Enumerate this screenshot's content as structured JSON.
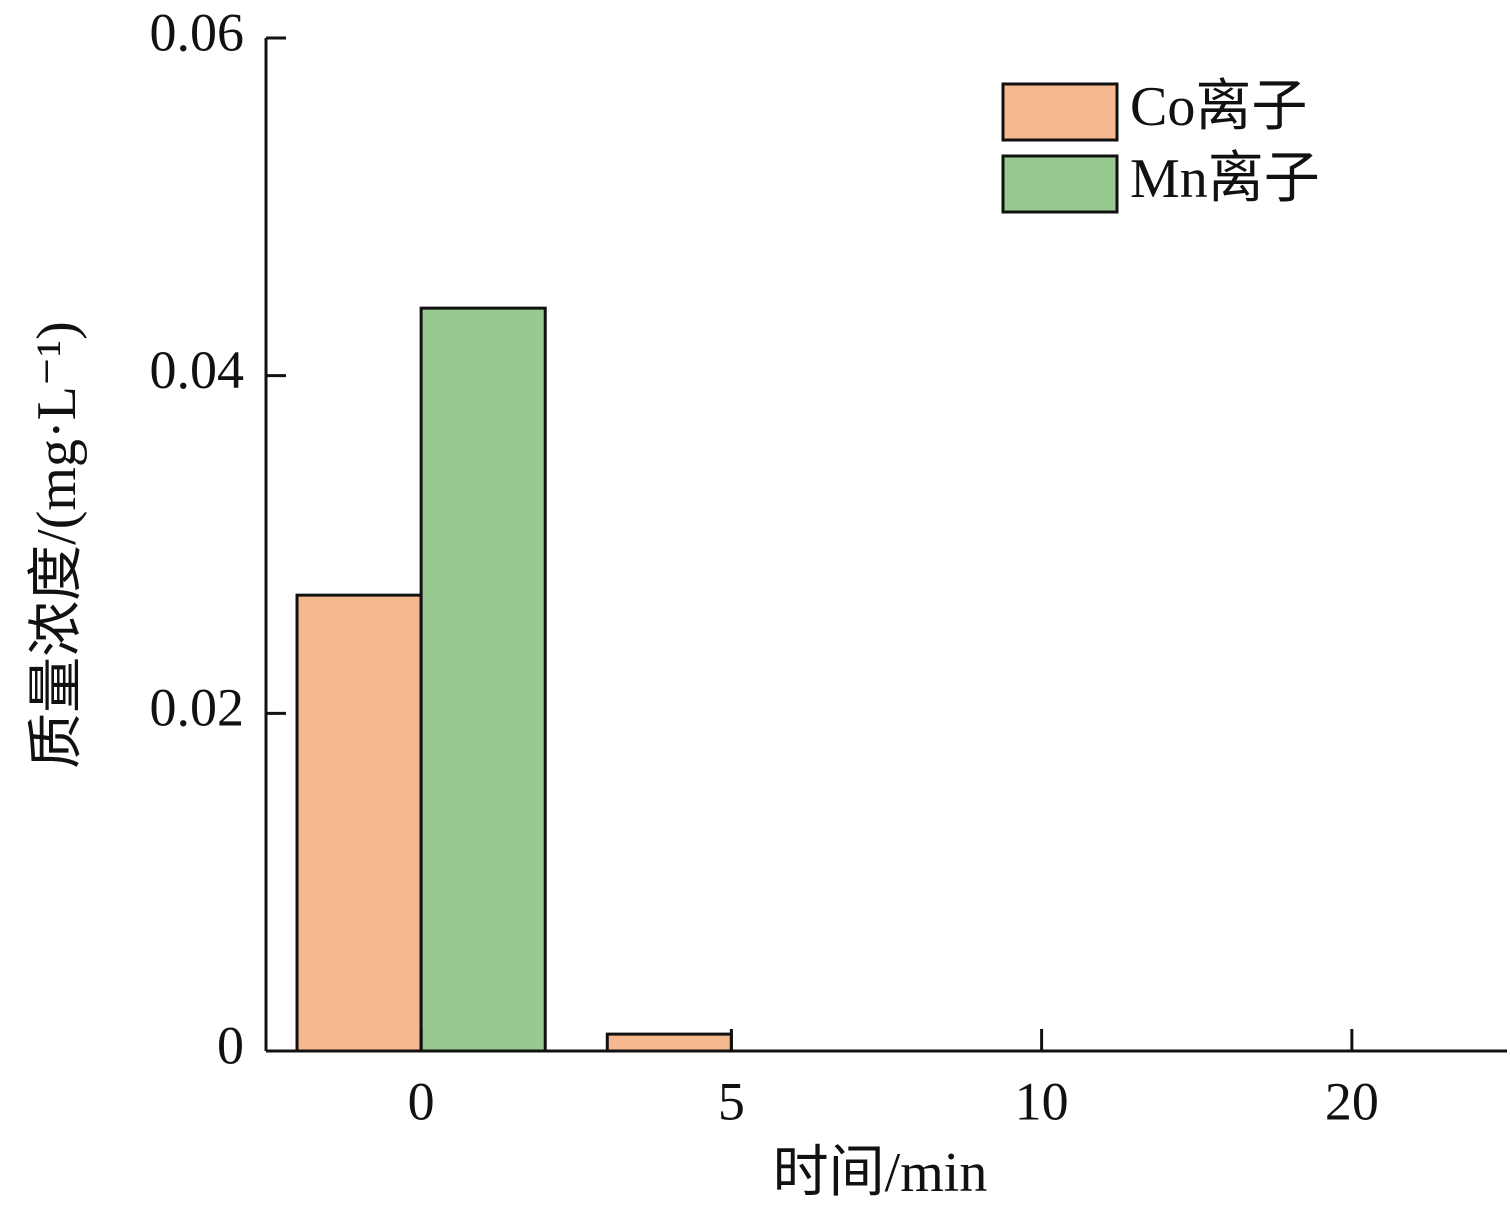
{
  "chart_data": {
    "type": "bar",
    "x_label": "时间/min",
    "y_label": "质量浓度/(mg·L⁻¹)",
    "categories": [
      "0",
      "5",
      "10",
      "20"
    ],
    "series": [
      {
        "name": "Co离子",
        "color": "#f5b88f",
        "values": [
          0.027,
          0.001,
          0,
          0
        ]
      },
      {
        "name": "Mn离子",
        "color": "#98c991",
        "values": [
          0.044,
          0,
          0,
          0
        ]
      }
    ],
    "ylim": [
      0,
      0.06
    ],
    "yticks": [
      0,
      0.02,
      0.04,
      0.06
    ],
    "legend": "upper right"
  }
}
